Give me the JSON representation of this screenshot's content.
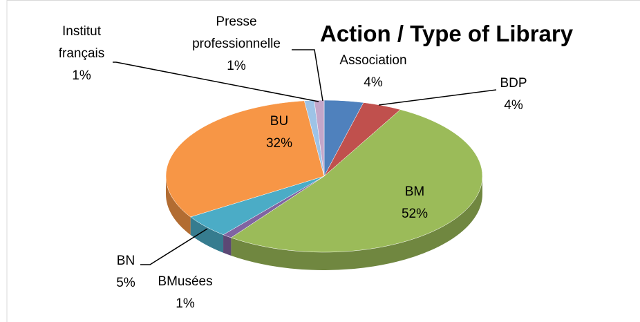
{
  "chart_data": {
    "type": "pie3d",
    "title": "Action / Type of Library",
    "categories": [
      "Association",
      "BDP",
      "BM",
      "BMusées",
      "BN",
      "BU",
      "Institut français",
      "Presse professionnelle"
    ],
    "values": [
      4,
      4,
      52,
      1,
      5,
      32,
      1,
      1
    ],
    "value_labels": [
      "4%",
      "4%",
      "52%",
      "1%",
      "5%",
      "32%",
      "1%",
      "1%"
    ],
    "colors": [
      "#4f81bd",
      "#c0504d",
      "#9bbb59",
      "#8064a2",
      "#4bacc6",
      "#f79646",
      "#9dc3e6",
      "#c3a6c9"
    ]
  }
}
